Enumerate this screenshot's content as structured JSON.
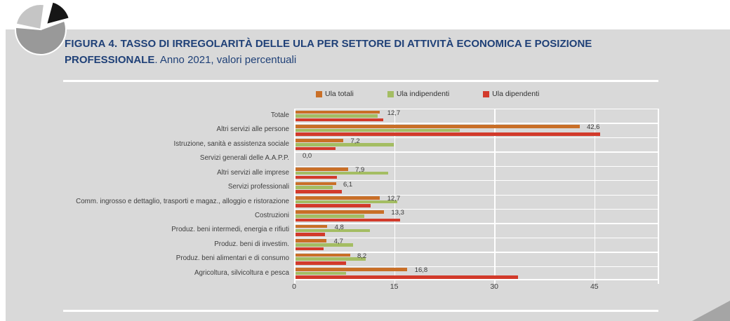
{
  "figure": {
    "label": "FIGURA 4.",
    "title_caps": " TASSO DI IRREGOLARITÀ DELLE ULA PER SETTORE DI ATTIVITÀ ECONOMICA E POSIZIONE PROFESSIONALE",
    "subtitle": ". Anno 2021, valori percentuali"
  },
  "colors": {
    "panel_background": "#d9d9d9",
    "title_blue": "#1f4077",
    "gridline_white": "#ffffff",
    "ula_totali_orange": "#c96f27",
    "ula_indipendenti_green": "#a4bd63",
    "ula_dipendenti_red": "#d23a2b",
    "logo_light_gray": "#c5c5c5",
    "logo_dark_gray": "#999999",
    "logo_black": "#161616",
    "page_curl_gray": "#a5a5a5"
  },
  "chart_data": {
    "type": "bar",
    "orientation": "horizontal",
    "title": "Tasso di irregolarità delle ULA per settore di attività economica e posizione professionale, anno 2021, valori percentuali",
    "categories": [
      "Totale",
      "Altri servizi alle persone",
      "Istruzione, sanità e assistenza sociale",
      "Servizi generali delle A.A.P.P.",
      "Altri servizi alle imprese",
      "Servizi professionali",
      "Comm. ingrosso e dettaglio, trasporti e magaz., alloggio e ristorazione",
      "Costruzioni",
      "Produz. beni intermedi, energia e rifiuti",
      "Produz. beni di investim.",
      "Produz. beni alimentari e di consumo",
      "Agricoltura, silvicoltura e pesca"
    ],
    "series": [
      {
        "name": "Ula totali",
        "color": "#c96f27",
        "values": [
          12.7,
          42.6,
          7.2,
          0.0,
          7.9,
          6.1,
          12.7,
          13.3,
          4.8,
          4.7,
          8.2,
          16.8
        ]
      },
      {
        "name": "Ula indipendenti",
        "color": "#a4bd63",
        "values": [
          12.3,
          24.7,
          14.8,
          0.0,
          13.9,
          5.6,
          15.3,
          10.3,
          11.2,
          8.7,
          10.6,
          7.6
        ]
      },
      {
        "name": "Ula dipendenti",
        "color": "#d23a2b",
        "values": [
          13.2,
          45.7,
          6.0,
          0.0,
          6.2,
          7.0,
          11.3,
          15.7,
          4.5,
          4.3,
          7.6,
          33.4
        ]
      }
    ],
    "data_labels": [
      "12,7",
      "42,6",
      "7,2",
      "0,0",
      "7,9",
      "6,1",
      "12,7",
      "13,3",
      "4,8",
      "4,7",
      "8,2",
      "16,8"
    ],
    "data_labels_series": "Ula totali",
    "xticks": [
      0,
      15,
      30,
      45
    ],
    "xtick_labels": [
      "0",
      "15",
      "30",
      "45"
    ],
    "xmax": 54.7,
    "grid": true,
    "legend_position": "top"
  }
}
